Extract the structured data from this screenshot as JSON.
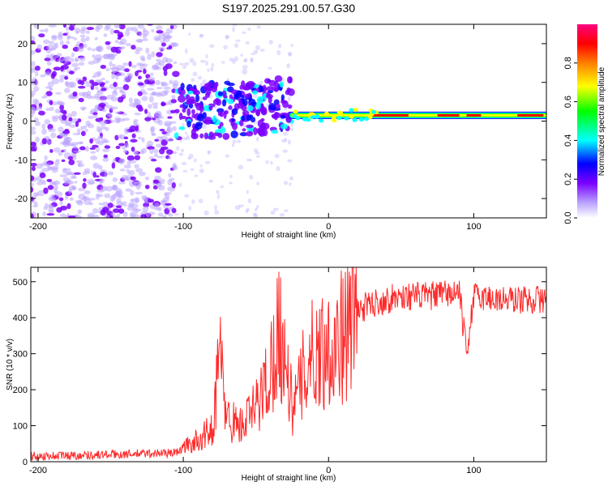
{
  "title": "S197.2025.291.00.57.G30",
  "chart_data": [
    {
      "type": "heatmap",
      "title": "S197.2025.291.00.57.G30",
      "xlabel": "Height of straight line (km)",
      "ylabel": "Frequency (Hz)",
      "xlim": [
        -205,
        150
      ],
      "ylim": [
        -25,
        25
      ],
      "xticks": [
        -200,
        -100,
        0,
        100
      ],
      "yticks": [
        -20,
        -10,
        0,
        10,
        20
      ],
      "colorbar": {
        "label": "Normalized spectral amplitude",
        "range": [
          0,
          1
        ],
        "ticks": [
          0.0,
          0.2,
          0.4,
          0.6,
          0.8
        ],
        "colors": [
          "#ffffff",
          "#b8a0ff",
          "#7b00ff",
          "#0000ff",
          "#00ffff",
          "#00ff00",
          "#ffff00",
          "#ff7f00",
          "#ff0000",
          "#ff0080"
        ]
      },
      "regions": [
        {
          "name": "scattered noise",
          "x_range": [
            -205,
            -105
          ],
          "freq_range": [
            -25,
            25
          ],
          "amplitude": 0.1
        },
        {
          "name": "blob cluster",
          "x_range": [
            -105,
            -25
          ],
          "freq_range": [
            -5,
            10
          ],
          "amplitude": 0.3
        },
        {
          "name": "tone line",
          "x_range": [
            -25,
            150
          ],
          "center_freq": 1.5,
          "amplitude": 0.9
        }
      ]
    },
    {
      "type": "line",
      "xlabel": "Height of straight line (km)",
      "ylabel": "SNR (10 * v/v)",
      "xlim": [
        -205,
        150
      ],
      "ylim": [
        0,
        540
      ],
      "xticks": [
        -200,
        -100,
        0,
        100
      ],
      "yticks": [
        0,
        100,
        200,
        300,
        400,
        500
      ],
      "color": "#ff2a2a",
      "series": [
        {
          "name": "SNR",
          "x": [
            -205,
            -150,
            -105,
            -100,
            -90,
            -80,
            -75,
            -70,
            -60,
            -50,
            -40,
            -35,
            -30,
            -25,
            -20,
            -15,
            -10,
            0,
            10,
            20,
            30,
            50,
            70,
            90,
            95,
            100,
            120,
            150
          ],
          "y": [
            15,
            20,
            25,
            40,
            60,
            90,
            300,
            120,
            100,
            150,
            250,
            380,
            300,
            150,
            200,
            280,
            300,
            320,
            350,
            420,
            440,
            460,
            460,
            470,
            300,
            460,
            450,
            450
          ]
        }
      ]
    }
  ]
}
